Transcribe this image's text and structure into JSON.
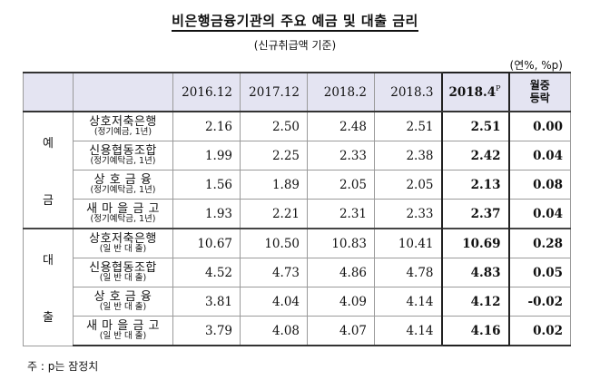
{
  "title": "비은행금융기관의 주요 예금 및 대출 금리",
  "subtitle": "(신규취급액 기준)",
  "unit": "(연%, %p)",
  "header": {
    "columns": [
      "2016.12",
      "2017.12",
      "2018.2",
      "2018.3"
    ],
    "latest": "2018.4",
    "latest_sup": "P",
    "change_line1": "월중",
    "change_line2": "등락"
  },
  "groups": [
    {
      "category_chars": [
        "예",
        "금"
      ],
      "rows": [
        {
          "name": "상호저축은행",
          "sub": "(정기예금, 1년)",
          "values": [
            "2.16",
            "2.50",
            "2.48",
            "2.51"
          ],
          "latest": "2.51",
          "change": "0.00"
        },
        {
          "name": "신용협동조합",
          "sub": "(정기예탁금, 1년)",
          "values": [
            "1.99",
            "2.25",
            "2.33",
            "2.38"
          ],
          "latest": "2.42",
          "change": "0.04"
        },
        {
          "name": "상 호 금 융",
          "sub": "(정기예탁금, 1년)",
          "values": [
            "1.56",
            "1.89",
            "2.05",
            "2.05"
          ],
          "latest": "2.13",
          "change": "0.08"
        },
        {
          "name": "새 마 을 금 고",
          "sub": "(정기예탁금, 1년)",
          "values": [
            "1.93",
            "2.21",
            "2.31",
            "2.33"
          ],
          "latest": "2.37",
          "change": "0.04"
        }
      ]
    },
    {
      "category_chars": [
        "대",
        "출"
      ],
      "rows": [
        {
          "name": "상호저축은행",
          "sub": "(일 반 대 출)",
          "values": [
            "10.67",
            "10.50",
            "10.83",
            "10.41"
          ],
          "latest": "10.69",
          "change": "0.28"
        },
        {
          "name": "신용협동조합",
          "sub": "(일 반 대 출)",
          "values": [
            "4.52",
            "4.73",
            "4.86",
            "4.78"
          ],
          "latest": "4.83",
          "change": "0.05"
        },
        {
          "name": "상 호 금 융",
          "sub": "(일 반 대 출)",
          "values": [
            "3.81",
            "4.04",
            "4.09",
            "4.14"
          ],
          "latest": "4.12",
          "change": "-0.02"
        },
        {
          "name": "새 마 을 금 고",
          "sub": "(일 반 대 출)",
          "values": [
            "3.79",
            "4.08",
            "4.07",
            "4.14"
          ],
          "latest": "4.16",
          "change": "0.02"
        }
      ]
    }
  ],
  "note": "주 : p는 잠정치"
}
